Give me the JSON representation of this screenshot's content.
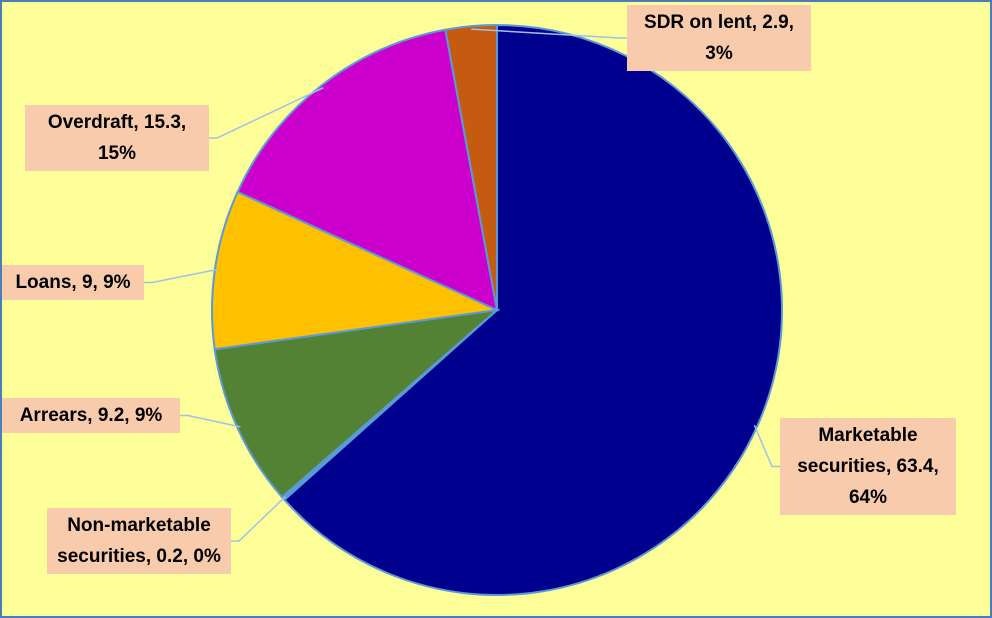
{
  "chart_data": {
    "type": "pie",
    "labels": [
      "Marketable securities, 63.4, 64%",
      "Non-marketable securities, 0.2, 0%",
      "Arrears, 9.2, 9%",
      "Loans, 9, 9%",
      "Overdraft, 15.3, 15%",
      "SDR on lent, 2.9, 3%"
    ],
    "values": [
      63.4,
      0.2,
      9.2,
      9,
      15.3,
      2.9
    ],
    "colors": [
      "#00008f",
      "#5b9bd5",
      "#548235",
      "#ffc000",
      "#cc00cc",
      "#c55a11"
    ]
  }
}
